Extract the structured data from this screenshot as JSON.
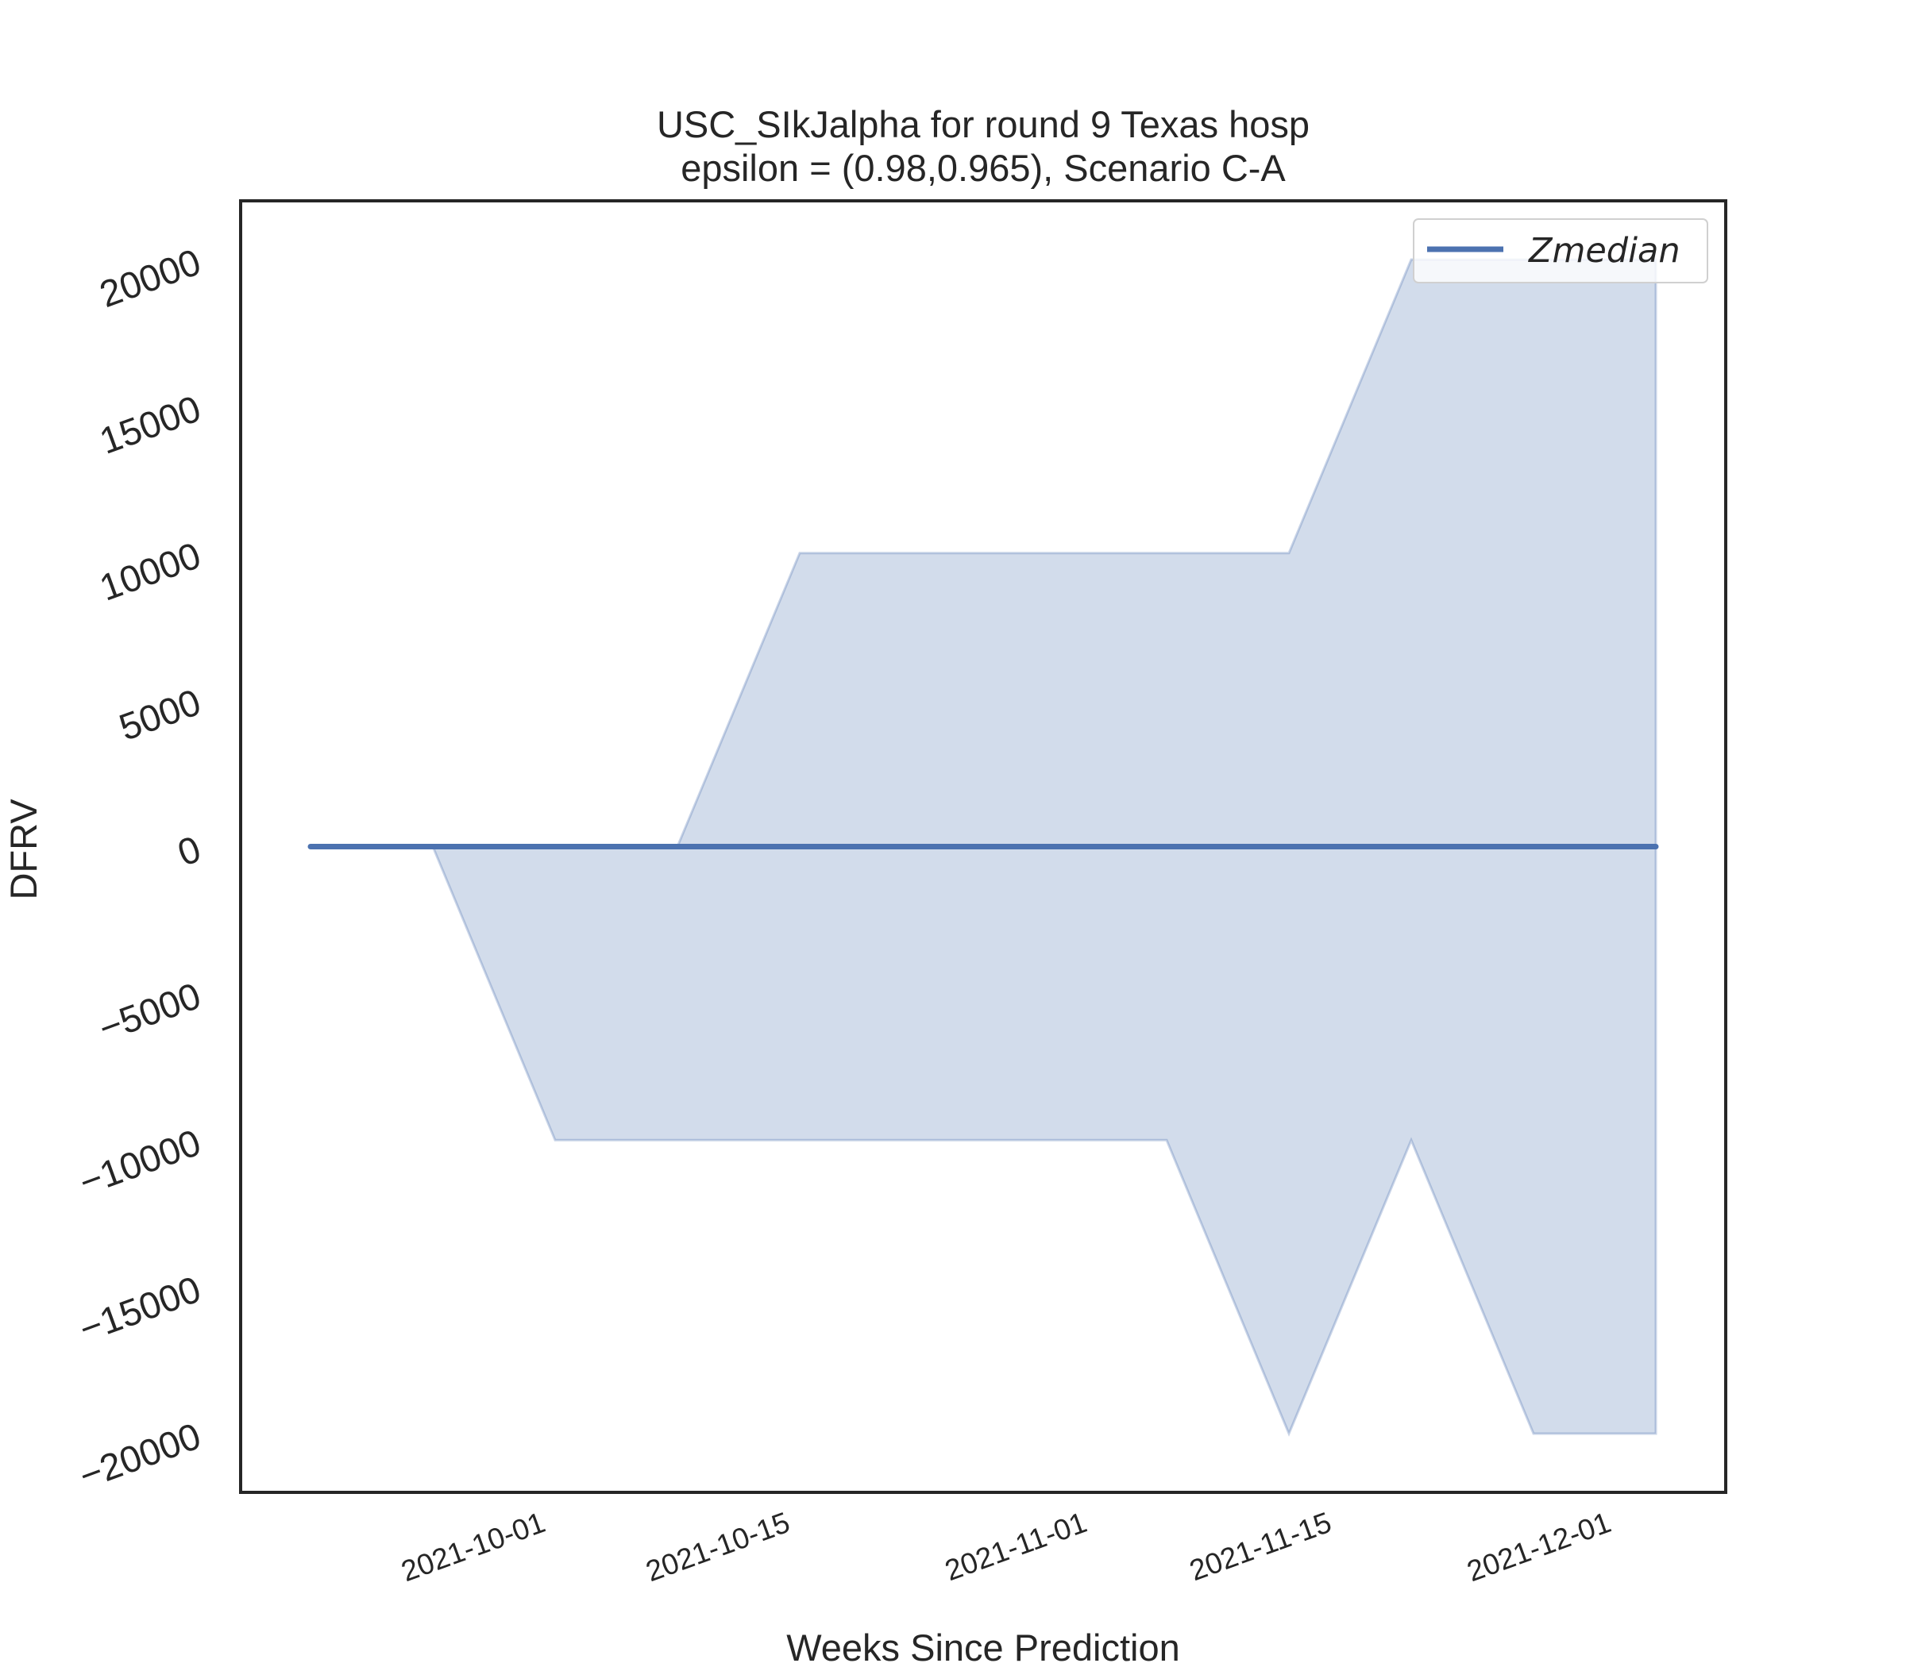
{
  "chart_data": {
    "type": "area",
    "title_line1": "USC_SIkJalpha for round 9 Texas  hosp",
    "title_line2": "epsilon = (0.98,0.965), Scenario C-A",
    "xlabel": "Weeks Since Prediction",
    "ylabel": "DFRV",
    "x": [
      "2021-09-18",
      "2021-09-25",
      "2021-10-02",
      "2021-10-09",
      "2021-10-16",
      "2021-10-23",
      "2021-10-30",
      "2021-11-06",
      "2021-11-13",
      "2021-11-20",
      "2021-11-27",
      "2021-12-04"
    ],
    "xticks": [
      "2021-10-01",
      "2021-10-15",
      "2021-11-01",
      "2021-11-15",
      "2021-12-01"
    ],
    "xlim": [
      "2021-09-14",
      "2021-12-08"
    ],
    "yticks": [
      20000,
      15000,
      10000,
      5000,
      0,
      -5000,
      -10000,
      -15000,
      -20000
    ],
    "ytick_labels": [
      "20000",
      "15000",
      "10000",
      "5000",
      "0",
      "−5000",
      "−10000",
      "−15000",
      "−20000"
    ],
    "ylim": [
      -22000,
      22000
    ],
    "grid": false,
    "legend_position": "top-right",
    "series": [
      {
        "name": "Zmedian",
        "color": "#4c72b0",
        "values": [
          0,
          0,
          0,
          0,
          0,
          0,
          0,
          0,
          0,
          0,
          0,
          0
        ]
      }
    ],
    "band": {
      "color": "#4c72b0",
      "lower": [
        0,
        0,
        -10000,
        -10000,
        -10000,
        -10000,
        -10000,
        -10000,
        -20000,
        -10000,
        -20000,
        -20000
      ],
      "upper": [
        0,
        0,
        0,
        0,
        10000,
        10000,
        10000,
        10000,
        10000,
        20000,
        20000,
        20000
      ]
    }
  }
}
